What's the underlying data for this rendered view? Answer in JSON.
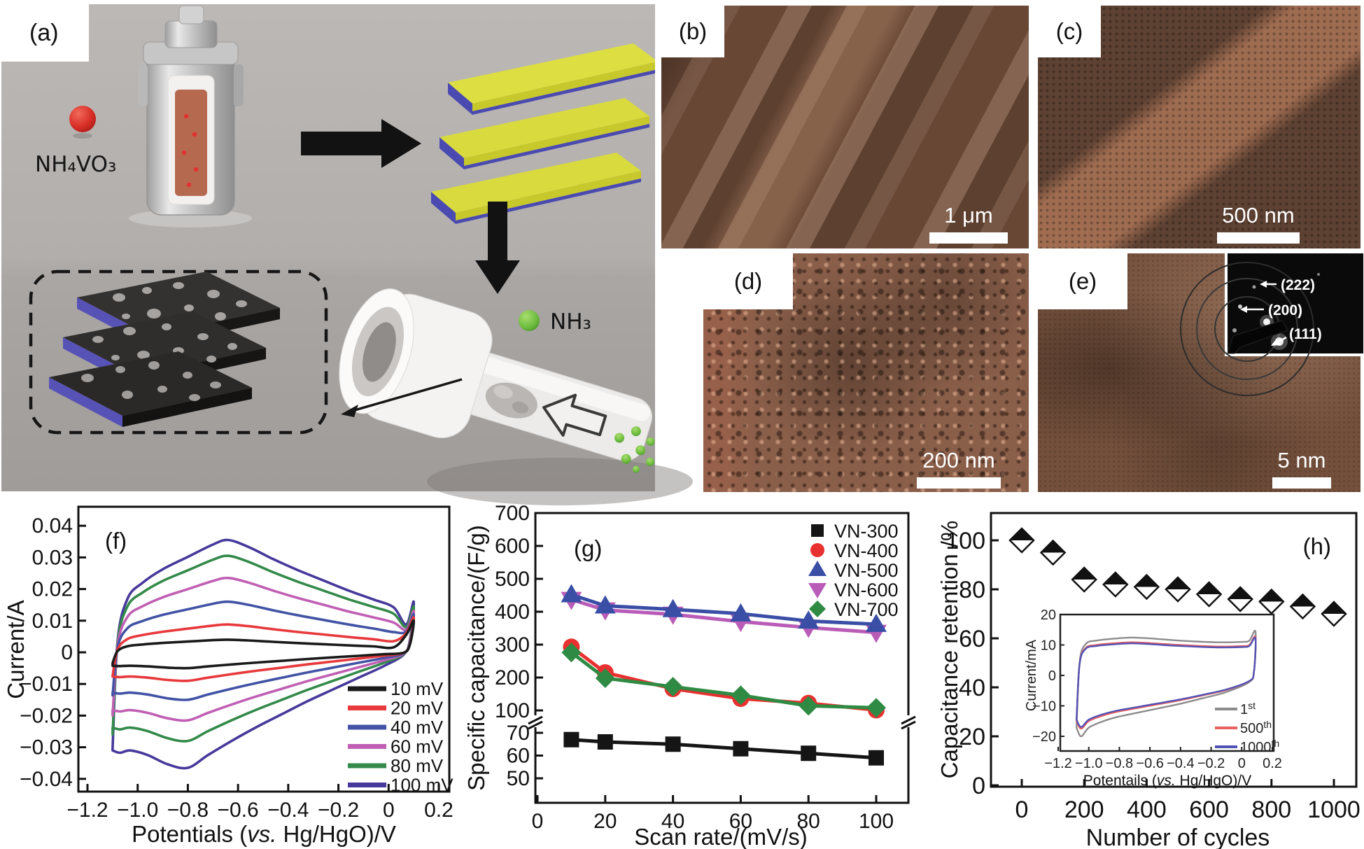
{
  "figure": {
    "panel_labels": {
      "a": "(a)",
      "b": "(b)",
      "c": "(c)",
      "d": "(d)",
      "e": "(e)",
      "f": "(f)",
      "g": "(g)",
      "h": "(h)"
    },
    "panel_a": {
      "reagent_label": "NH₄VO₃",
      "gas_label": "NH₃"
    },
    "micrographs": {
      "b": {
        "label": "(b)",
        "scale": "1 μm"
      },
      "c": {
        "label": "(c)",
        "scale": "500 nm"
      },
      "d": {
        "label": "(d)",
        "scale": "200 nm"
      },
      "e": {
        "label": "(e)",
        "scale": "5 nm"
      }
    },
    "diffraction_labels": [
      "(222)",
      "(200)",
      "(111)"
    ]
  },
  "chart_data": [
    {
      "id": "cv_scan_rates",
      "panel": "(f)",
      "type": "line",
      "ylabel": "Current/A",
      "xlabel_parts": {
        "pre": "Potentials (",
        "it": "vs.",
        "post": " Hg/HgO)/V"
      },
      "xlim": [
        -1.25,
        0.25
      ],
      "ylim": [
        -0.045,
        0.045
      ],
      "xticks": [
        {
          "v": -1.2,
          "label": "−1.2"
        },
        {
          "v": -1.0,
          "label": "−1.0"
        },
        {
          "v": -0.8,
          "label": "−0.8"
        },
        {
          "v": -0.6,
          "label": "−0.6"
        },
        {
          "v": -0.4,
          "label": "−0.4"
        },
        {
          "v": -0.2,
          "label": "−0.2"
        },
        {
          "v": 0,
          "label": "0"
        },
        {
          "v": 0.2,
          "label": "0.2"
        }
      ],
      "yticks": [
        {
          "v": 0.04,
          "label": "0.04"
        },
        {
          "v": 0.03,
          "label": "0.03"
        },
        {
          "v": 0.02,
          "label": "0.02"
        },
        {
          "v": 0.01,
          "label": "0.01"
        },
        {
          "v": 0,
          "label": "0"
        },
        {
          "v": -0.01,
          "label": "−0.01"
        },
        {
          "v": -0.02,
          "label": "−0.02"
        },
        {
          "v": -0.03,
          "label": "−0.03"
        },
        {
          "v": -0.04,
          "label": "−0.04"
        }
      ],
      "series": [
        {
          "name": "10 mV",
          "color": "#1a1a1a",
          "anodic_peak": 0.004,
          "cathodic_peak": 0.005,
          "tip": 0.01
        },
        {
          "name": "20 mV",
          "color": "#e8393c",
          "anodic_peak": 0.0088,
          "cathodic_peak": 0.009,
          "tip": 0.011
        },
        {
          "name": "40 mV",
          "color": "#4253a5",
          "anodic_peak": 0.016,
          "cathodic_peak": 0.015,
          "tip": 0.012
        },
        {
          "name": "60 mV",
          "color": "#c05fb4",
          "anodic_peak": 0.0235,
          "cathodic_peak": 0.0215,
          "tip": 0.013
        },
        {
          "name": "80 mV",
          "color": "#338a4a",
          "anodic_peak": 0.0305,
          "cathodic_peak": 0.028,
          "tip": 0.0145
        },
        {
          "name": "100 mV",
          "color": "#46399b",
          "anodic_peak": 0.0355,
          "cathodic_peak": 0.0365,
          "tip": 0.016
        }
      ],
      "loop_base": {
        "upper": [
          [
            -1.1,
            -0.85,
            0
          ],
          [
            -1.08,
            0.1,
            0
          ],
          [
            -1.04,
            0.48,
            0
          ],
          [
            -0.98,
            0.62,
            0
          ],
          [
            -0.9,
            0.74,
            0
          ],
          [
            -0.8,
            0.85,
            0
          ],
          [
            -0.7,
            0.96,
            0
          ],
          [
            -0.64,
            1.0,
            0
          ],
          [
            -0.56,
            0.94,
            0
          ],
          [
            -0.46,
            0.83,
            0
          ],
          [
            -0.36,
            0.73,
            0
          ],
          [
            -0.26,
            0.64,
            0
          ],
          [
            -0.16,
            0.55,
            0
          ],
          [
            -0.06,
            0.47,
            0
          ],
          [
            0.02,
            0.4,
            0
          ],
          [
            0.07,
            0.55,
            1
          ],
          [
            0.1,
            1.0,
            1
          ]
        ],
        "lower": [
          [
            0.1,
            1.0,
            1
          ],
          [
            0.085,
            0.25,
            1
          ],
          [
            0.06,
            -0.02,
            0
          ],
          [
            -0.02,
            -0.12,
            0
          ],
          [
            -0.12,
            -0.22,
            0
          ],
          [
            -0.22,
            -0.32,
            0
          ],
          [
            -0.32,
            -0.42,
            0
          ],
          [
            -0.42,
            -0.53,
            0
          ],
          [
            -0.52,
            -0.64,
            0
          ],
          [
            -0.62,
            -0.76,
            0
          ],
          [
            -0.72,
            -0.89,
            0
          ],
          [
            -0.8,
            -1.0,
            0
          ],
          [
            -0.88,
            -0.97,
            0
          ],
          [
            -0.96,
            -0.89,
            0
          ],
          [
            -1.03,
            -0.85,
            0
          ],
          [
            -1.07,
            -0.87,
            0
          ],
          [
            -1.1,
            -0.85,
            0
          ]
        ]
      }
    },
    {
      "id": "specific_capacitance",
      "panel": "(g)",
      "type": "line",
      "ylabel": "Specific capacitance/(F/g)",
      "xlabel": "Scan rate/(mV/s)",
      "x": [
        10,
        20,
        40,
        60,
        80,
        100
      ],
      "xticks": [
        0,
        20,
        40,
        60,
        80,
        100
      ],
      "yticks_upper": [
        700,
        600,
        500,
        400,
        300,
        200,
        100
      ],
      "yticks_lower": [
        70,
        60,
        50
      ],
      "y_break": [
        75,
        100
      ],
      "series": [
        {
          "name": "VN-600",
          "marker": "triangle-down",
          "color": "#b95cb8",
          "values": [
            437,
            405,
            392,
            370,
            352,
            337
          ]
        },
        {
          "name": "VN-500",
          "marker": "triangle-up",
          "color": "#3a4ea6",
          "values": [
            452,
            418,
            407,
            394,
            372,
            362
          ]
        },
        {
          "name": "VN-400",
          "marker": "circle",
          "color": "#e93030",
          "values": [
            293,
            215,
            166,
            136,
            122,
            101
          ]
        },
        {
          "name": "VN-700",
          "marker": "diamond",
          "color": "#2f8b44",
          "values": [
            276,
            198,
            172,
            146,
            114,
            108
          ]
        },
        {
          "name": "VN-300",
          "marker": "square",
          "color": "#151515",
          "values": [
            67,
            66,
            65,
            63,
            61,
            59
          ]
        }
      ],
      "legend_order": [
        "VN-300",
        "VN-400",
        "VN-500",
        "VN-600",
        "VN-700"
      ]
    },
    {
      "id": "cycling_retention",
      "panel": "(h)",
      "type": "scatter",
      "ylabel": "Capacitance retention /%",
      "xlabel": "Number of cycles",
      "marker": "half-filled-diamond",
      "xticks": [
        0,
        200,
        400,
        600,
        800,
        1000
      ],
      "yticks": [
        0,
        20,
        40,
        60,
        80,
        100
      ],
      "x": [
        0,
        100,
        200,
        300,
        400,
        500,
        600,
        700,
        800,
        900,
        1000
      ],
      "values": [
        100,
        95,
        84,
        82,
        81,
        80,
        78,
        76,
        75,
        73,
        70
      ],
      "inset": {
        "ylabel": "Current/mA",
        "xlabel_parts": {
          "pre": "Potentails (",
          "it": "vs.",
          "post": " Hg/HgO)/V"
        },
        "xticks": [
          {
            "v": -1.2,
            "label": "−1.2"
          },
          {
            "v": -1.0,
            "label": "−1.0"
          },
          {
            "v": -0.8,
            "label": "−0.8"
          },
          {
            "v": -0.6,
            "label": "−0.6"
          },
          {
            "v": -0.4,
            "label": "−0.4"
          },
          {
            "v": -0.2,
            "label": "−0.2"
          },
          {
            "v": 0,
            "label": "0"
          },
          {
            "v": 0.2,
            "label": "0.2"
          }
        ],
        "yticks": [
          {
            "v": 20,
            "label": "20"
          },
          {
            "v": 10,
            "label": "10"
          },
          {
            "v": 0,
            "label": "0"
          },
          {
            "v": -10,
            "label": "−10"
          },
          {
            "v": -20,
            "label": "−20"
          }
        ],
        "series": [
          {
            "num": "1",
            "suf": "st",
            "color": "#8c8c8c",
            "scale": 14.3
          },
          {
            "num": "500",
            "suf": "th",
            "color": "#e86060",
            "scale": 12.5
          },
          {
            "num": "1000",
            "suf": "th",
            "color": "#5353b5",
            "scale": 12.1
          }
        ],
        "loop_base": {
          "upper": [
            [
              -1.08,
              -1.2,
              0
            ],
            [
              -1.06,
              0.3,
              0
            ],
            [
              -1.02,
              0.72,
              0
            ],
            [
              -0.95,
              0.8,
              0
            ],
            [
              -0.85,
              0.84,
              0
            ],
            [
              -0.72,
              0.87,
              0
            ],
            [
              -0.6,
              0.85,
              0
            ],
            [
              -0.45,
              0.81,
              0
            ],
            [
              -0.3,
              0.78,
              0
            ],
            [
              -0.15,
              0.76,
              0
            ],
            [
              0.0,
              0.77,
              0
            ],
            [
              0.05,
              0.8,
              0
            ],
            [
              0.09,
              1.0,
              1
            ]
          ],
          "lower": [
            [
              0.09,
              1.0,
              1
            ],
            [
              0.08,
              0.1,
              1
            ],
            [
              0.05,
              -0.15,
              0
            ],
            [
              -0.1,
              -0.38,
              0
            ],
            [
              -0.25,
              -0.52,
              0
            ],
            [
              -0.4,
              -0.65,
              0
            ],
            [
              -0.55,
              -0.76,
              0
            ],
            [
              -0.7,
              -0.87,
              0
            ],
            [
              -0.82,
              -0.96,
              0
            ],
            [
              -0.92,
              -1.07,
              0
            ],
            [
              -1.0,
              -1.2,
              0
            ],
            [
              -1.05,
              -1.4,
              0
            ],
            [
              -1.08,
              -1.2,
              0
            ]
          ]
        }
      }
    }
  ]
}
